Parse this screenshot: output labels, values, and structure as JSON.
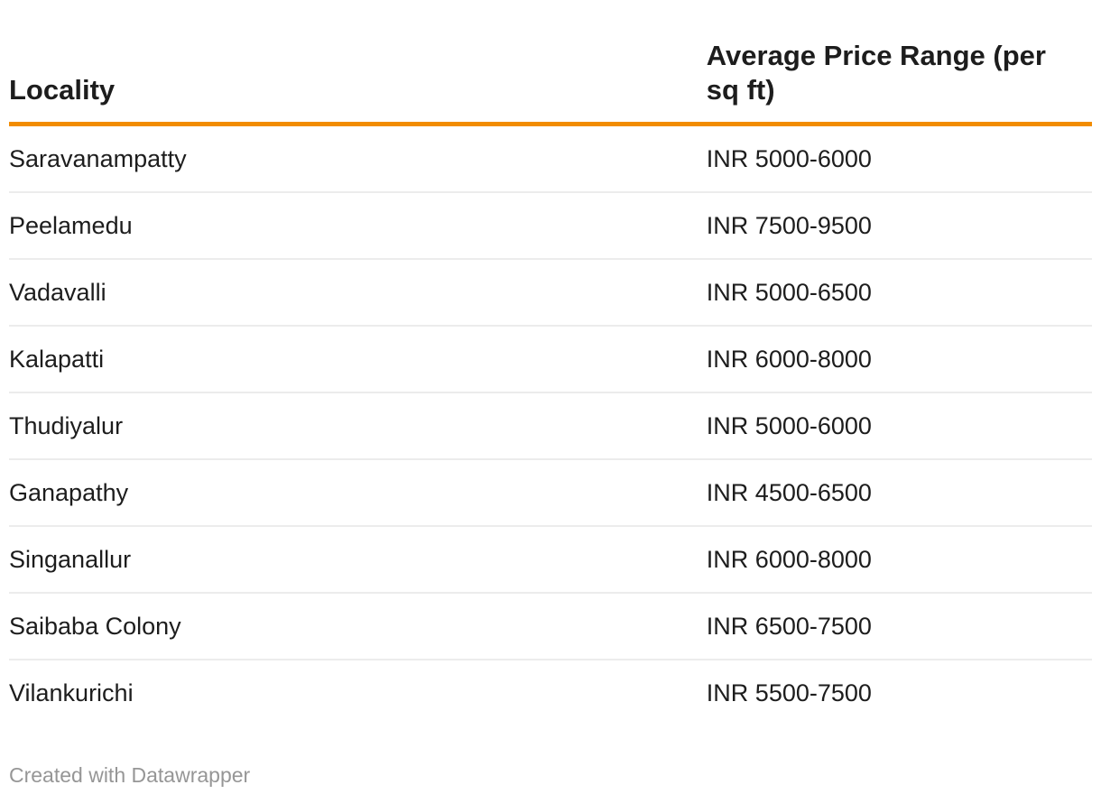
{
  "chart_data": {
    "type": "table",
    "columns": [
      "Locality",
      "Average Price Range (per sq ft)"
    ],
    "rows": [
      [
        "Saravanampatty",
        "INR 5000-6000"
      ],
      [
        "Peelamedu",
        "INR 7500-9500"
      ],
      [
        "Vadavalli",
        "INR 5000-6500"
      ],
      [
        "Kalapatti",
        "INR 6000-8000"
      ],
      [
        "Thudiyalur",
        "INR 5000-6000"
      ],
      [
        "Ganapathy",
        "INR 4500-6500"
      ],
      [
        "Singanallur",
        "INR 6000-8000"
      ],
      [
        "Saibaba Colony",
        "INR 6500-7500"
      ],
      [
        "Vilankurichi",
        "INR 5500-7500"
      ]
    ],
    "layout": {
      "header_rule_color": "#F28C00",
      "row_divider_color": "#ececec",
      "text_color": "#1d1d1d",
      "footer_text_color": "#969696",
      "grid": "horizontal-dividers"
    }
  },
  "footer": {
    "credit": "Created with Datawrapper"
  }
}
